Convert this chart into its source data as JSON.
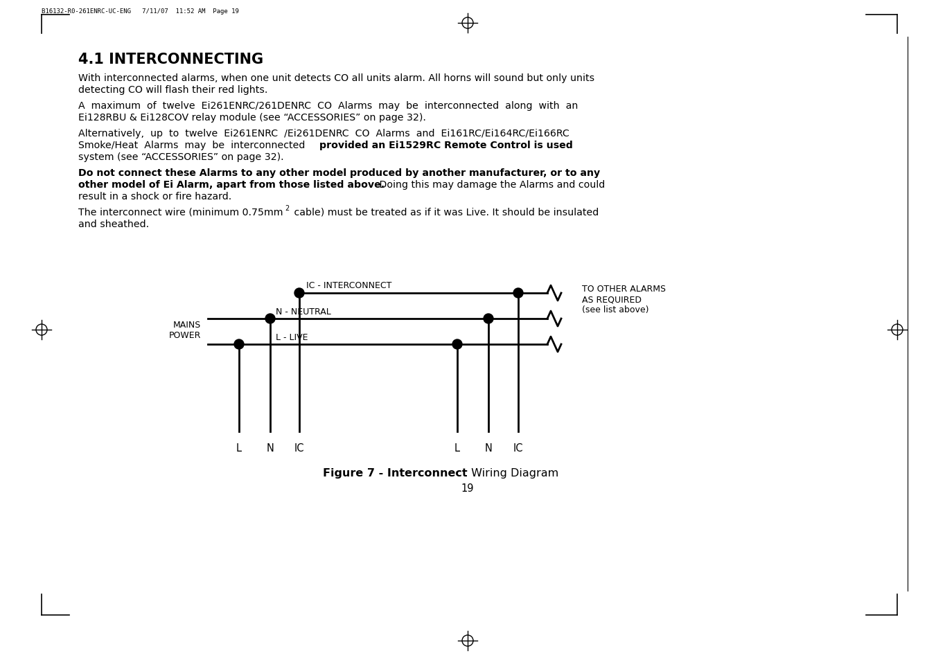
{
  "page_header": "B16132-R0-261ENRC-UC-ENG   7/11/07  11:52 AM  Page 19",
  "section_title": "4.1 INTERCONNECTING",
  "line_color": "#000000",
  "bg_color": "#ffffff",
  "text_color": "#000000",
  "diagram": {
    "label_ic_interconnect": "IC - INTERCONNECT",
    "label_n_neutral": "N - NEUTRAL",
    "label_l_live": "L - LIVE",
    "label_mains_power": "MAINS\nPOWER",
    "label_to_other": "TO OTHER ALARMS\nAS REQUIRED\n(see list above)",
    "bottom_labels_left": [
      "L",
      "N",
      "IC"
    ],
    "bottom_labels_right": [
      "L",
      "N",
      "IC"
    ]
  },
  "fig_caption_bold": "Figure 7 - Interconnect",
  "fig_caption_normal": " Wiring Diagram",
  "page_number": "19"
}
